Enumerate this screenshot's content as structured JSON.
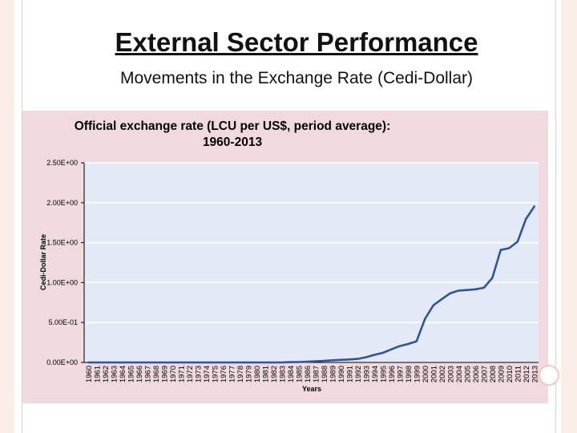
{
  "slide": {
    "title": "External Sector Performance",
    "subtitle": "Movements in the Exchange Rate (Cedi-Dollar)"
  },
  "colors": {
    "panel_bg": "#f0dadd",
    "plot_bg": "#e3e9f6",
    "grid": "#ffffff",
    "line": "#2f5597",
    "decor": "#f3c9b5"
  },
  "chart_data": {
    "type": "line",
    "title": "Official exchange rate (LCU per US$, period average): 1960-2013",
    "xlabel": "Years",
    "ylabel": "Cedi-Dollar Rate",
    "ylim": [
      0,
      2.5
    ],
    "yticks": [
      {
        "value": 0,
        "label": "0.00E+00"
      },
      {
        "value": 0.5,
        "label": "5.00E-01"
      },
      {
        "value": 1.0,
        "label": "1.00E+00"
      },
      {
        "value": 1.5,
        "label": "1.50E+00"
      },
      {
        "value": 2.0,
        "label": "2.00E+00"
      },
      {
        "value": 2.5,
        "label": "2.50E+00"
      }
    ],
    "grid": true,
    "legend": "none",
    "categories": [
      "1960",
      "1961",
      "1962",
      "1963",
      "1964",
      "1965",
      "1966",
      "1967",
      "1968",
      "1969",
      "1970",
      "1971",
      "1972",
      "1973",
      "1974",
      "1975",
      "1976",
      "1977",
      "1978",
      "1979",
      "1980",
      "1981",
      "1982",
      "1983",
      "1984",
      "1985",
      "1986",
      "1987",
      "1988",
      "1989",
      "1990",
      "1991",
      "1992",
      "1993",
      "1994",
      "1995",
      "1996",
      "1997",
      "1998",
      "1999",
      "2000",
      "2001",
      "2002",
      "2003",
      "2004",
      "2005",
      "2006",
      "2007",
      "2008",
      "2009",
      "2010",
      "2011",
      "2012",
      "2013"
    ],
    "series": [
      {
        "values": [
          0.0001,
          0.0001,
          0.0001,
          0.0001,
          0.0001,
          0.0001,
          0.0001,
          0.0001,
          0.0001,
          0.0001,
          0.0001,
          0.0001,
          0.0001,
          0.0001,
          0.0001,
          0.0001,
          0.0001,
          0.0001,
          0.0001,
          0.0001,
          0.0003,
          0.0003,
          0.0003,
          0.0003,
          0.0036,
          0.0054,
          0.0089,
          0.0154,
          0.0202,
          0.027,
          0.0326,
          0.0368,
          0.0437,
          0.0649,
          0.0956,
          0.12,
          0.1637,
          0.205,
          0.2314,
          0.2647,
          0.5449,
          0.7163,
          0.7925,
          0.8668,
          0.8995,
          0.9063,
          0.9161,
          0.9352,
          1.0579,
          1.4088,
          1.431,
          1.5119,
          1.7958,
          1.9538
        ]
      }
    ]
  }
}
